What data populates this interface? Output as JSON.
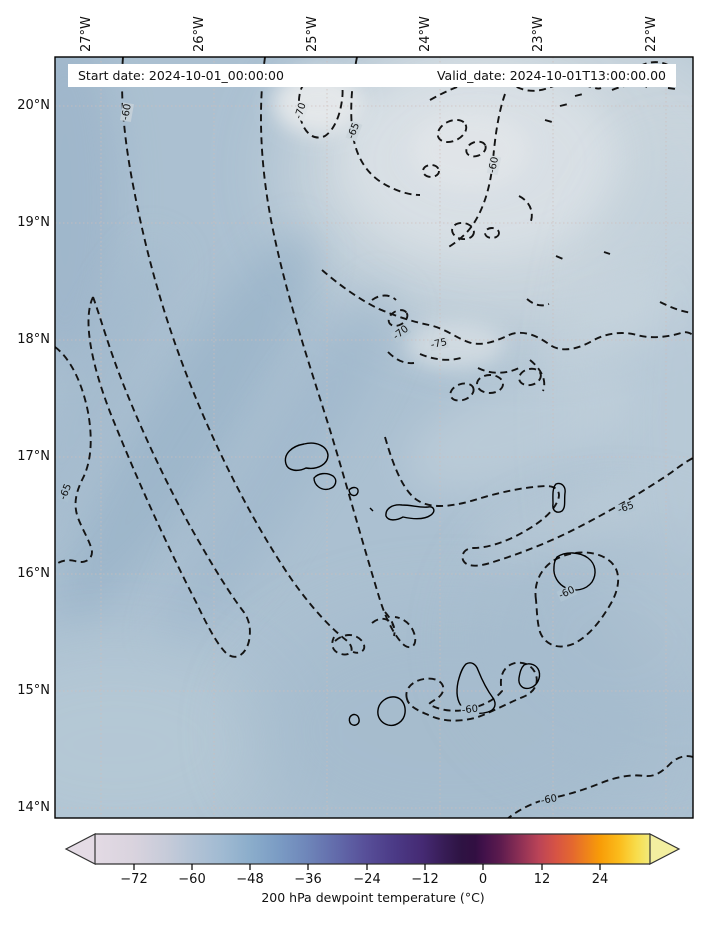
{
  "title_bar": {
    "start": "Start date: 2024-10-01_00:00:00",
    "valid": "Valid_date: 2024-10-01T13:00:00.00"
  },
  "axes": {
    "top": [
      "27°W",
      "26°W",
      "25°W",
      "24°W",
      "23°W",
      "22°W"
    ],
    "left": [
      "20°N",
      "19°N",
      "18°N",
      "17°N",
      "16°N",
      "15°N",
      "14°N"
    ]
  },
  "contour_labels": [
    "-60",
    "-70",
    "-65",
    "-60",
    "-70",
    "-75",
    "-65",
    "-65",
    "-60",
    "-60",
    "-60"
  ],
  "colorbar": {
    "ticks": [
      "−72",
      "−60",
      "−48",
      "−36",
      "−24",
      "−12",
      "0",
      "12",
      "24"
    ],
    "label": "200 hPa dewpoint temperature (°C)",
    "under_color": "#e4dbe5",
    "over_color": "#f3efa0",
    "gradient": [
      {
        "t": 0.0,
        "c": "#e3dae4"
      },
      {
        "t": 0.07,
        "c": "#d9d3de"
      },
      {
        "t": 0.13,
        "c": "#c6cbd9"
      },
      {
        "t": 0.17,
        "c": "#b5c4d6"
      },
      {
        "t": 0.23,
        "c": "#a0bad2"
      },
      {
        "t": 0.28,
        "c": "#8badcb"
      },
      {
        "t": 0.33,
        "c": "#7b9cc4"
      },
      {
        "t": 0.38,
        "c": "#6f87ba"
      },
      {
        "t": 0.44,
        "c": "#6168a9"
      },
      {
        "t": 0.49,
        "c": "#574e98"
      },
      {
        "t": 0.54,
        "c": "#4b3a86"
      },
      {
        "t": 0.59,
        "c": "#452a73"
      },
      {
        "t": 0.63,
        "c": "#371c55"
      },
      {
        "t": 0.66,
        "c": "#2e1343"
      },
      {
        "t": 0.685,
        "c": "#320f42"
      },
      {
        "t": 0.7,
        "c": "#41114a"
      },
      {
        "t": 0.73,
        "c": "#5c1b4e"
      },
      {
        "t": 0.765,
        "c": "#8c2f55"
      },
      {
        "t": 0.8,
        "c": "#bb4457"
      },
      {
        "t": 0.83,
        "c": "#d65345"
      },
      {
        "t": 0.86,
        "c": "#e4682f"
      },
      {
        "t": 0.91,
        "c": "#f89c07"
      },
      {
        "t": 0.945,
        "c": "#fbbc1c"
      },
      {
        "t": 0.975,
        "c": "#f8dc4a"
      },
      {
        "t": 1.0,
        "c": "#f2ea7c"
      }
    ]
  },
  "colors": {
    "map_base": "#abc0d1",
    "map_light": "#e3e7ea",
    "map_dark": "#99b3c8",
    "contour_line": "#141414",
    "grid_line": "#cfbdb9"
  },
  "chart_data": {
    "type": "contour-map",
    "field": "200 hPa dewpoint temperature",
    "units": "°C",
    "extent": {
      "lon_west": "27°W",
      "lon_east": "22°W",
      "lat_south": "14°N",
      "lat_north": "20°N"
    },
    "contour_levels": [
      -75,
      -70,
      -65,
      -60
    ],
    "contour_style": "dashed-black",
    "coastlines": "Cape Verde islands, solid black",
    "colorbar": {
      "tick_values": [
        -72,
        -60,
        -48,
        -36,
        -24,
        -12,
        0,
        12,
        24
      ],
      "extend": "both",
      "label": "200 hPa dewpoint temperature (°C)"
    }
  }
}
